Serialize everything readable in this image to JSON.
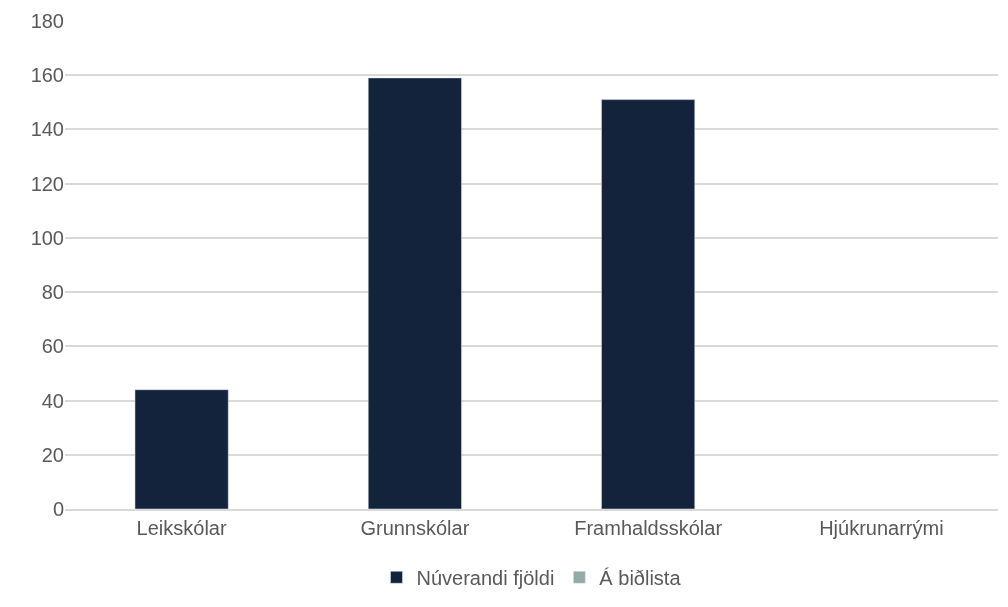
{
  "chart_data": {
    "type": "bar",
    "categories": [
      "Leikskólar",
      "Grunnskólar",
      "Framhaldsskólar",
      "Hjúkrunarrými"
    ],
    "series": [
      {
        "name": "Núverandi fjöldi",
        "color": "#14233c",
        "values": [
          44,
          159,
          151,
          null
        ]
      },
      {
        "name": "Á biðlista",
        "color": "#93aba8",
        "values": [
          null,
          null,
          null,
          null
        ]
      }
    ],
    "ylim": [
      0,
      180
    ],
    "yticks": [
      0,
      20,
      40,
      60,
      80,
      100,
      120,
      140,
      160,
      180
    ],
    "grid": "y",
    "legend": "bottom"
  }
}
